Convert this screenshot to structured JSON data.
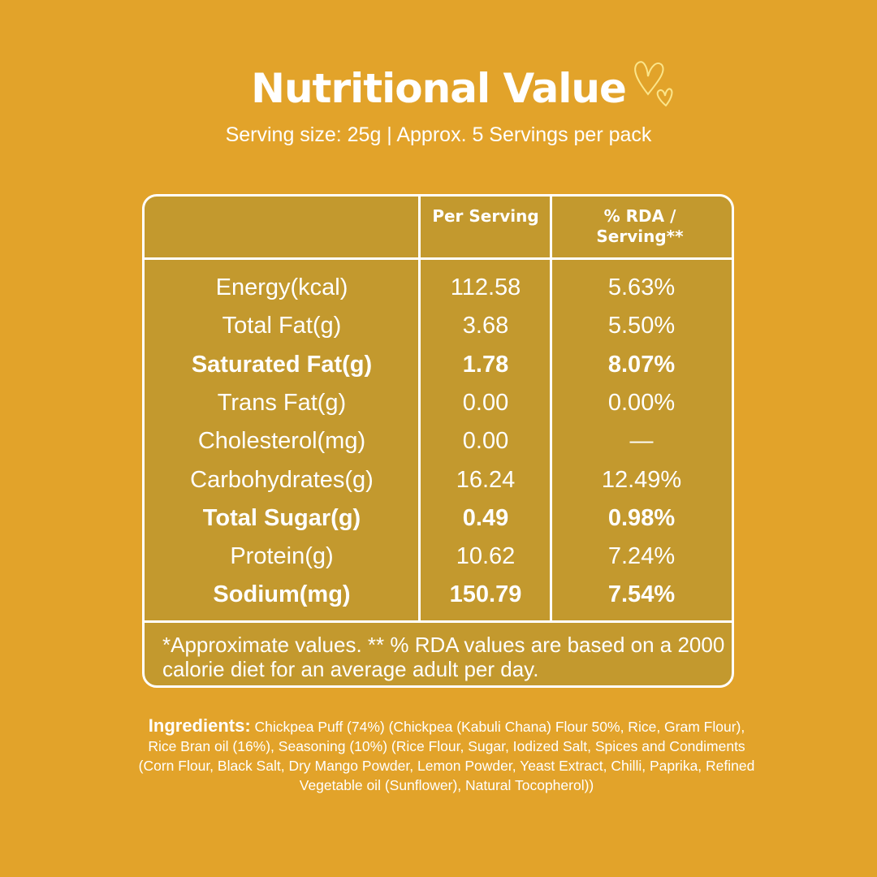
{
  "title": "Nutritional Value",
  "subtitle": "Serving size: 25g | Approx. 5 Servings per pack",
  "table": {
    "headers": [
      "",
      "Per Serving",
      "% RDA / Serving**"
    ],
    "rows": [
      {
        "label": "Energy(kcal)",
        "per_serving": "112.58",
        "rda": "5.63%",
        "bold": false
      },
      {
        "label": "Total Fat(g)",
        "per_serving": "3.68",
        "rda": "5.50%",
        "bold": false
      },
      {
        "label": "Saturated Fat(g)",
        "per_serving": "1.78",
        "rda": "8.07%",
        "bold": true
      },
      {
        "label": "Trans Fat(g)",
        "per_serving": "0.00",
        "rda": "0.00%",
        "bold": false
      },
      {
        "label": "Cholesterol(mg)",
        "per_serving": "0.00",
        "rda": "—",
        "bold": false
      },
      {
        "label": "Carbohydrates(g)",
        "per_serving": "16.24",
        "rda": "12.49%",
        "bold": false
      },
      {
        "label": "Total Sugar(g)",
        "per_serving": "0.49",
        "rda": "0.98%",
        "bold": true
      },
      {
        "label": "Protein(g)",
        "per_serving": "10.62",
        "rda": "7.24%",
        "bold": false
      },
      {
        "label": "Sodium(mg)",
        "per_serving": "150.79",
        "rda": "7.54%",
        "bold": true
      }
    ],
    "footnote": "*Approximate values. ** % RDA values are based on a 2000 calorie diet for an average adult per day."
  },
  "ingredients": {
    "label": "Ingredients:",
    "text": "Chickpea Puff (74%)  (Chickpea (Kabuli Chana) Flour 50%, Rice, Gram Flour), Rice Bran oil (16%), Seasoning (10%) (Rice Flour, Sugar, Iodized Salt, Spices and Condiments (Corn Flour, Black Salt, Dry Mango Powder, Lemon Powder, Yeast Extract, Chilli, Paprika, Refined Vegetable oil (Sunflower), Natural Tocopherol))"
  },
  "icons": {
    "title_decoration": "hearts-doodle-icon"
  },
  "colors": {
    "background": "#E2A32A",
    "table_fill": "#C3992E",
    "heart": "#FBE58A"
  }
}
